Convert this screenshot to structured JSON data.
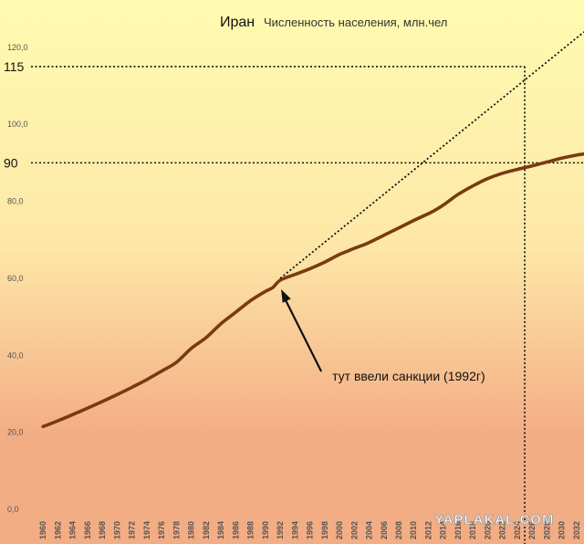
{
  "chart_data": {
    "type": "line",
    "title": "Иран",
    "subtitle": "Численность населения, млн.чел",
    "xlabel": "",
    "ylabel": "",
    "ylim": [
      0,
      125
    ],
    "xlim": [
      1959.5,
      2033
    ],
    "grid": false,
    "y_ticks": [
      "0,0",
      "20,0",
      "40,0",
      "60,0",
      "80,0",
      "100,0",
      "120,0"
    ],
    "x_ticks": [
      "1960",
      "1962",
      "1964",
      "1966",
      "1968",
      "1970",
      "1972",
      "1974",
      "1976",
      "1978",
      "1980",
      "1982",
      "1984",
      "1986",
      "1988",
      "1990",
      "1992",
      "1994",
      "1996",
      "1998",
      "2000",
      "2002",
      "2004",
      "2006",
      "2008",
      "2010",
      "2012",
      "2014",
      "2016",
      "2018",
      "2020",
      "2022",
      "2024",
      "2026",
      "2028",
      "2030",
      "2032"
    ],
    "series": [
      {
        "color": "#7a3a10",
        "x": [
          1960,
          1962,
          1964,
          1966,
          1968,
          1970,
          1972,
          1974,
          1976,
          1978,
          1980,
          1982,
          1984,
          1986,
          1988,
          1990,
          1991,
          1992,
          1994,
          1996,
          1998,
          2000,
          2001,
          2002,
          2003,
          2004,
          2006,
          2008,
          2010,
          2012,
          2013,
          2014,
          2015,
          2016,
          2018,
          2020,
          2022,
          2024,
          2026,
          2028,
          2030,
          2032,
          2033
        ],
        "values": [
          21.5,
          23.0,
          24.6,
          26.3,
          28.0,
          29.8,
          31.7,
          33.7,
          35.9,
          38.2,
          41.8,
          44.6,
          48.2,
          51.2,
          54.2,
          56.6,
          57.6,
          59.5,
          61.0,
          62.5,
          64.2,
          66.2,
          67.0,
          67.8,
          68.5,
          69.3,
          71.2,
          73.1,
          75.0,
          76.8,
          77.8,
          79.0,
          80.4,
          81.8,
          84.0,
          85.9,
          87.3,
          88.3,
          89.2,
          90.2,
          91.2,
          92.0,
          92.3
        ]
      },
      {
        "style": "dotted",
        "color": "#111111",
        "x": [
          1992,
          2033
        ],
        "values": [
          60.0,
          124.0
        ]
      }
    ],
    "reference_lines": [
      {
        "axis": "y",
        "value": 115,
        "label": "115"
      },
      {
        "axis": "y",
        "value": 90,
        "label": "90"
      },
      {
        "axis": "x",
        "value": 2025
      }
    ],
    "annotations": [
      {
        "text": "тут ввели санкции (1992г)",
        "x": 1992,
        "y": 59.5
      }
    ]
  },
  "watermark": "YAPLAKAL.COM",
  "colors": {
    "background_top": "#fffbb0",
    "background_mid": "#fde7a8",
    "background_bottom": "#f3ad85",
    "line": "#7a3a10",
    "reference": "#111111",
    "arrow": "#111111"
  }
}
